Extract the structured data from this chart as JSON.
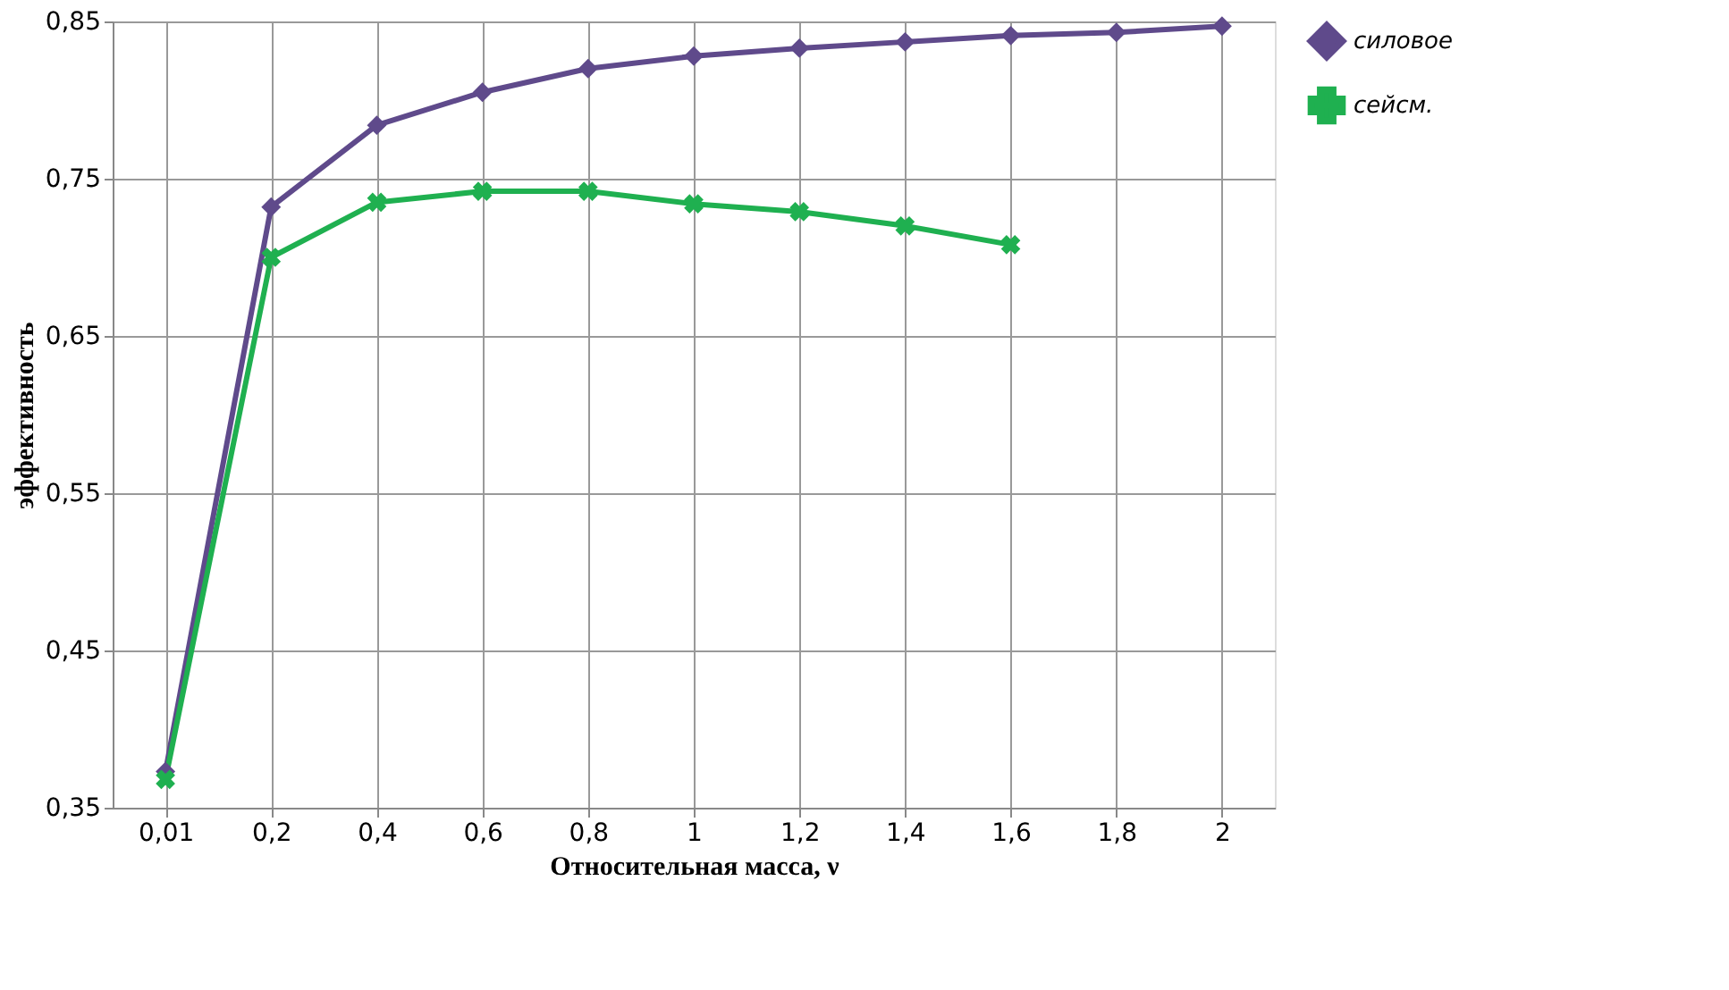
{
  "chart_data": {
    "type": "line",
    "xlabel": "Относительная масса, ν",
    "ylabel": "эффективность",
    "categories": [
      "0,01",
      "0,2",
      "0,4",
      "0,6",
      "0,8",
      "1",
      "1,2",
      "1,4",
      "1,6",
      "1,8",
      "2"
    ],
    "series": [
      {
        "name": "силовое",
        "color": "#5f4a8b",
        "marker": "diamond",
        "values": [
          0.373,
          0.732,
          0.784,
          0.805,
          0.82,
          0.828,
          0.833,
          0.837,
          0.841,
          0.843,
          0.847
        ]
      },
      {
        "name": "сейсм.",
        "color": "#1fb050",
        "marker": "cross",
        "values": [
          0.368,
          0.7,
          0.735,
          0.742,
          0.742,
          0.734,
          0.729,
          0.72,
          0.708,
          null,
          null
        ]
      }
    ],
    "ylim": [
      0.35,
      0.85
    ],
    "yticks": [
      {
        "value": 0.35,
        "label": "0,35"
      },
      {
        "value": 0.45,
        "label": "0,45"
      },
      {
        "value": 0.55,
        "label": "0,55"
      },
      {
        "value": 0.65,
        "label": "0,65"
      },
      {
        "value": 0.75,
        "label": "0,75"
      },
      {
        "value": 0.85,
        "label": "0,85"
      }
    ],
    "grid": true,
    "legend": "right",
    "line_style": "solid"
  }
}
